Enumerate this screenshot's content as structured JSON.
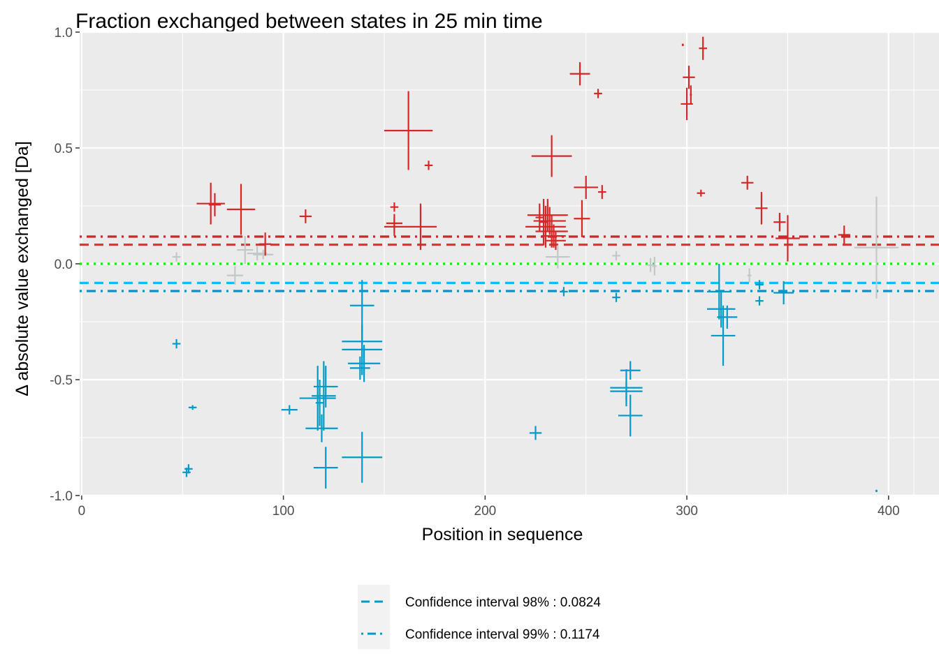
{
  "chart_data": {
    "type": "scatter",
    "title": "Fraction exchanged between states in 25 min time",
    "xlabel": "Position in sequence",
    "ylabel": "Δ absolute value exchanged [Da]",
    "xlim": [
      -1,
      425
    ],
    "ylim": [
      -1.0,
      1.0
    ],
    "x_ticks": [
      0,
      100,
      200,
      300,
      400
    ],
    "x_tick_labels": [
      "0",
      "100",
      "200",
      "300",
      "400"
    ],
    "y_ticks": [
      -1.0,
      -0.5,
      0.0,
      0.5,
      1.0
    ],
    "y_tick_labels": [
      "-1.0",
      "-0.5",
      "0.0",
      "0.5",
      "1.0"
    ],
    "grid": true,
    "legend_position": "bottom",
    "legend": [
      {
        "label": "Confidence interval 98% : 0.0824",
        "linetype": "dashed",
        "color": "#0099c6"
      },
      {
        "label": "Confidence interval 99% : 0.1174",
        "linetype": "dotdash",
        "color": "#0099c6"
      }
    ],
    "reference_lines": [
      {
        "y": 0.1174,
        "color": "#c82828",
        "linetype": "dotdash"
      },
      {
        "y": 0.0824,
        "color": "#e53333",
        "linetype": "dashed"
      },
      {
        "y": 0.0,
        "color": "#00ee00",
        "linetype": "dotted"
      },
      {
        "y": -0.0824,
        "color": "#00bfff",
        "linetype": "dashed"
      },
      {
        "y": -0.1174,
        "color": "#0092c8",
        "linetype": "dotdash"
      }
    ],
    "colors": {
      "positive": "#d62728",
      "negative": "#009ac8",
      "insignificant": "#c0c8c8"
    },
    "points": [
      {
        "x": 47,
        "y": 0.03,
        "xerr": 2,
        "yerr": 0.02,
        "g": "insignificant"
      },
      {
        "x": 64,
        "y": 0.26,
        "xerr": 7,
        "yerr": 0.09,
        "g": "positive"
      },
      {
        "x": 66,
        "y": 0.255,
        "xerr": 3,
        "yerr": 0.05,
        "g": "positive"
      },
      {
        "x": 79,
        "y": 0.235,
        "xerr": 7,
        "yerr": 0.11,
        "g": "positive"
      },
      {
        "x": 76,
        "y": -0.05,
        "xerr": 4,
        "yerr": 0.04,
        "g": "insignificant"
      },
      {
        "x": 81,
        "y": 0.06,
        "xerr": 4,
        "yerr": 0.06,
        "g": "insignificant"
      },
      {
        "x": 87,
        "y": 0.045,
        "xerr": 5,
        "yerr": 0.03,
        "g": "insignificant"
      },
      {
        "x": 90,
        "y": 0.04,
        "xerr": 5,
        "yerr": 0.02,
        "g": "insignificant"
      },
      {
        "x": 91,
        "y": 0.085,
        "xerr": 3,
        "yerr": 0.05,
        "g": "positive"
      },
      {
        "x": 111,
        "y": 0.205,
        "xerr": 3,
        "yerr": 0.03,
        "g": "positive"
      },
      {
        "x": 155,
        "y": 0.245,
        "xerr": 2,
        "yerr": 0.02,
        "g": "positive"
      },
      {
        "x": 155,
        "y": 0.175,
        "xerr": 4,
        "yerr": 0.04,
        "g": "positive"
      },
      {
        "x": 155,
        "y": 0.16,
        "xerr": 5,
        "yerr": 0.04,
        "g": "positive"
      },
      {
        "x": 162,
        "y": 0.575,
        "xerr": 12,
        "yerr": 0.17,
        "g": "positive"
      },
      {
        "x": 168,
        "y": 0.16,
        "xerr": 8,
        "yerr": 0.1,
        "g": "positive"
      },
      {
        "x": 172,
        "y": 0.425,
        "xerr": 2,
        "yerr": 0.02,
        "g": "positive"
      },
      {
        "x": 231,
        "y": 0.21,
        "xerr": 10,
        "yerr": 0.07,
        "g": "positive"
      },
      {
        "x": 230,
        "y": 0.16,
        "xerr": 10,
        "yerr": 0.09,
        "g": "positive"
      },
      {
        "x": 232,
        "y": 0.185,
        "xerr": 8,
        "yerr": 0.06,
        "g": "positive"
      },
      {
        "x": 233,
        "y": 0.14,
        "xerr": 8,
        "yerr": 0.07,
        "g": "positive"
      },
      {
        "x": 234,
        "y": 0.12,
        "xerr": 6,
        "yerr": 0.05,
        "g": "positive"
      },
      {
        "x": 235,
        "y": 0.1,
        "xerr": 5,
        "yerr": 0.04,
        "g": "positive"
      },
      {
        "x": 227,
        "y": 0.2,
        "xerr": 2,
        "yerr": 0.06,
        "g": "positive"
      },
      {
        "x": 229,
        "y": 0.18,
        "xerr": 2,
        "yerr": 0.1,
        "g": "positive"
      },
      {
        "x": 233,
        "y": 0.465,
        "xerr": 10,
        "yerr": 0.09,
        "g": "positive"
      },
      {
        "x": 236,
        "y": 0.03,
        "xerr": 6,
        "yerr": 0.05,
        "g": "insignificant"
      },
      {
        "x": 247,
        "y": 0.82,
        "xerr": 5,
        "yerr": 0.05,
        "g": "positive"
      },
      {
        "x": 248,
        "y": 0.195,
        "xerr": 4,
        "yerr": 0.08,
        "g": "positive"
      },
      {
        "x": 250,
        "y": 0.33,
        "xerr": 6,
        "yerr": 0.05,
        "g": "positive"
      },
      {
        "x": 256,
        "y": 0.735,
        "xerr": 2,
        "yerr": 0.02,
        "g": "positive"
      },
      {
        "x": 258,
        "y": 0.31,
        "xerr": 2,
        "yerr": 0.03,
        "g": "positive"
      },
      {
        "x": 265,
        "y": 0.035,
        "xerr": 2,
        "yerr": 0.02,
        "g": "insignificant"
      },
      {
        "x": 282,
        "y": -0.005,
        "xerr": 2,
        "yerr": 0.03,
        "g": "insignificant"
      },
      {
        "x": 284,
        "y": -0.01,
        "xerr": 1,
        "yerr": 0.04,
        "g": "insignificant"
      },
      {
        "x": 298,
        "y": 0.945,
        "xerr": 0.5,
        "yerr": 0.005,
        "g": "positive"
      },
      {
        "x": 300,
        "y": 0.69,
        "xerr": 3,
        "yerr": 0.07,
        "g": "positive"
      },
      {
        "x": 301,
        "y": 0.805,
        "xerr": 3,
        "yerr": 0.05,
        "g": "positive"
      },
      {
        "x": 302,
        "y": 0.73,
        "xerr": 0.5,
        "yerr": 0.04,
        "g": "positive"
      },
      {
        "x": 308,
        "y": 0.93,
        "xerr": 2,
        "yerr": 0.05,
        "g": "positive"
      },
      {
        "x": 307,
        "y": 0.305,
        "xerr": 2,
        "yerr": 0.015,
        "g": "positive"
      },
      {
        "x": 330,
        "y": 0.35,
        "xerr": 3,
        "yerr": 0.03,
        "g": "positive"
      },
      {
        "x": 337,
        "y": 0.24,
        "xerr": 3,
        "yerr": 0.07,
        "g": "positive"
      },
      {
        "x": 331,
        "y": -0.05,
        "xerr": 1,
        "yerr": 0.03,
        "g": "insignificant"
      },
      {
        "x": 346,
        "y": 0.18,
        "xerr": 3,
        "yerr": 0.04,
        "g": "positive"
      },
      {
        "x": 350,
        "y": 0.11,
        "xerr": 6,
        "yerr": 0.1,
        "g": "positive"
      },
      {
        "x": 378,
        "y": 0.125,
        "xerr": 3,
        "yerr": 0.04,
        "g": "positive"
      },
      {
        "x": 394,
        "y": 0.07,
        "xerr": 11,
        "yerr": 0.22,
        "g": "insignificant"
      },
      {
        "x": 47,
        "y": -0.345,
        "xerr": 2,
        "yerr": 0.02,
        "g": "negative"
      },
      {
        "x": 55,
        "y": -0.62,
        "xerr": 2,
        "yerr": 0.01,
        "g": "negative"
      },
      {
        "x": 52,
        "y": -0.9,
        "xerr": 2,
        "yerr": 0.02,
        "g": "negative"
      },
      {
        "x": 53,
        "y": -0.885,
        "xerr": 2,
        "yerr": 0.02,
        "g": "negative"
      },
      {
        "x": 103,
        "y": -0.63,
        "xerr": 4,
        "yerr": 0.02,
        "g": "negative"
      },
      {
        "x": 117,
        "y": -0.58,
        "xerr": 9,
        "yerr": 0.14,
        "g": "negative"
      },
      {
        "x": 118,
        "y": -0.6,
        "xerr": 2,
        "yerr": 0.1,
        "g": "negative"
      },
      {
        "x": 119,
        "y": -0.71,
        "xerr": 8,
        "yerr": 0.06,
        "g": "negative"
      },
      {
        "x": 120,
        "y": -0.57,
        "xerr": 6,
        "yerr": 0.15,
        "g": "negative"
      },
      {
        "x": 121,
        "y": -0.53,
        "xerr": 6,
        "yerr": 0.09,
        "g": "negative"
      },
      {
        "x": 121,
        "y": -0.88,
        "xerr": 6,
        "yerr": 0.09,
        "g": "negative"
      },
      {
        "x": 139,
        "y": -0.18,
        "xerr": 6,
        "yerr": 0.11,
        "g": "negative"
      },
      {
        "x": 139,
        "y": -0.335,
        "xerr": 10,
        "yerr": 0.07,
        "g": "negative"
      },
      {
        "x": 139,
        "y": -0.37,
        "xerr": 10,
        "yerr": 0.11,
        "g": "negative"
      },
      {
        "x": 140,
        "y": -0.43,
        "xerr": 8,
        "yerr": 0.08,
        "g": "negative"
      },
      {
        "x": 138,
        "y": -0.45,
        "xerr": 5,
        "yerr": 0.05,
        "g": "negative"
      },
      {
        "x": 139,
        "y": -0.835,
        "xerr": 10,
        "yerr": 0.11,
        "g": "negative"
      },
      {
        "x": 225,
        "y": -0.73,
        "xerr": 3,
        "yerr": 0.03,
        "g": "negative"
      },
      {
        "x": 239,
        "y": -0.12,
        "xerr": 2,
        "yerr": 0.02,
        "g": "negative"
      },
      {
        "x": 265,
        "y": -0.145,
        "xerr": 2,
        "yerr": 0.02,
        "g": "negative"
      },
      {
        "x": 270,
        "y": -0.535,
        "xerr": 8,
        "yerr": 0.08,
        "g": "negative"
      },
      {
        "x": 270,
        "y": -0.55,
        "xerr": 8,
        "yerr": 0.04,
        "g": "negative"
      },
      {
        "x": 272,
        "y": -0.46,
        "xerr": 5,
        "yerr": 0.04,
        "g": "negative"
      },
      {
        "x": 272,
        "y": -0.655,
        "xerr": 6,
        "yerr": 0.09,
        "g": "negative"
      },
      {
        "x": 316,
        "y": -0.12,
        "xerr": 6,
        "yerr": 0.12,
        "g": "negative"
      },
      {
        "x": 317,
        "y": -0.195,
        "xerr": 7,
        "yerr": 0.08,
        "g": "negative"
      },
      {
        "x": 320,
        "y": -0.23,
        "xerr": 5,
        "yerr": 0.05,
        "g": "negative"
      },
      {
        "x": 318,
        "y": -0.31,
        "xerr": 6,
        "yerr": 0.13,
        "g": "negative"
      },
      {
        "x": 336,
        "y": -0.16,
        "xerr": 2,
        "yerr": 0.02,
        "g": "negative"
      },
      {
        "x": 336,
        "y": -0.09,
        "xerr": 2,
        "yerr": 0.02,
        "g": "negative"
      },
      {
        "x": 348,
        "y": -0.125,
        "xerr": 5,
        "yerr": 0.05,
        "g": "negative"
      },
      {
        "x": 394,
        "y": -0.98,
        "xerr": 0.5,
        "yerr": 0.005,
        "g": "negative"
      }
    ]
  }
}
